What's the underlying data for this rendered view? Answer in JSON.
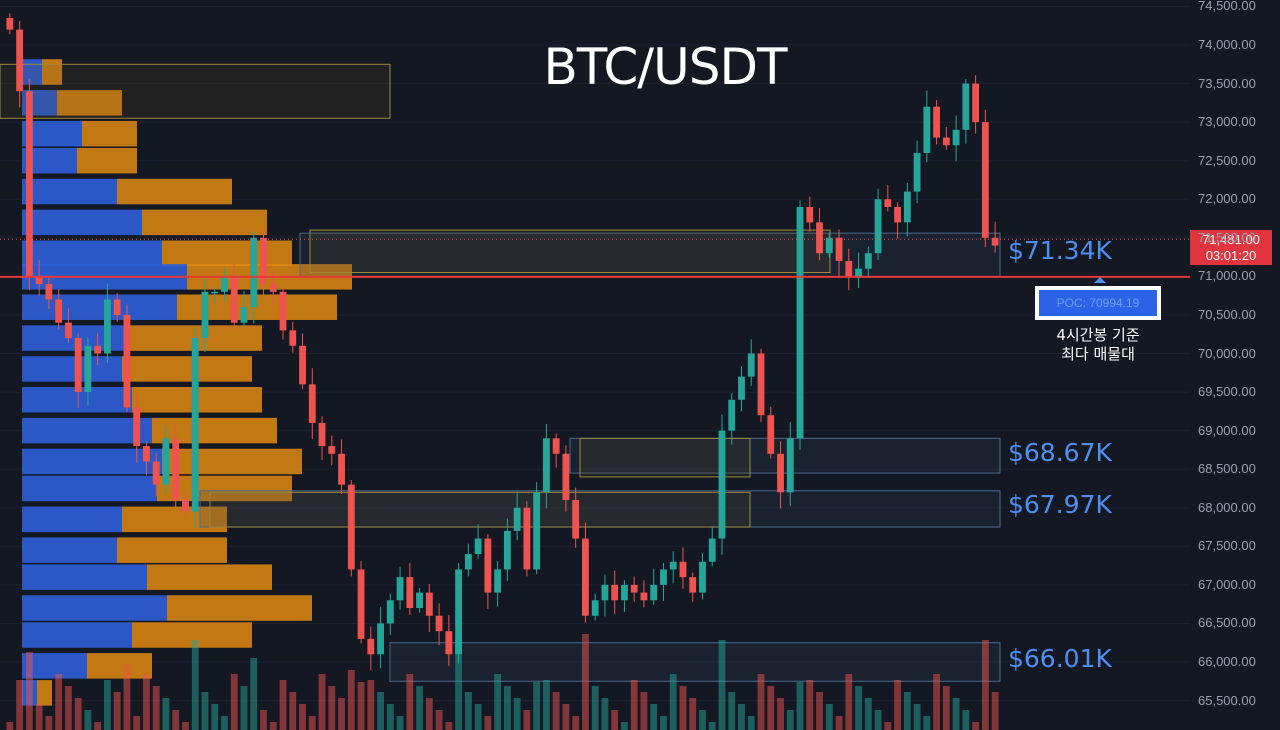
{
  "title": "BTC/USDT",
  "colors": {
    "background": "#141823",
    "bull": "#26a69a",
    "bear": "#ef5350",
    "vp_buy": "#2d5fd8",
    "vp_sell": "#e08a10",
    "poc_line": "#e53935",
    "zone_label": "#4f8ff0"
  },
  "price_tag": {
    "price": "71,481.00",
    "timer": "03:01:20"
  },
  "poc": {
    "label": "POC: 70994.19",
    "note_line1": "4시간봉 기준",
    "note_line2": "최다 매물대"
  },
  "zones": [
    {
      "label": "$71.34K",
      "low": 71000,
      "high": 71560
    },
    {
      "label": "$68.67K",
      "low": 68450,
      "high": 68900
    },
    {
      "label": "$67.97K",
      "low": 67750,
      "high": 68220
    },
    {
      "label": "$66.01K",
      "low": 65750,
      "high": 66250
    }
  ],
  "chart_data": {
    "type": "candlestick",
    "title": "BTC/USDT",
    "timeframe_note": "4시간봉 기준",
    "y_axis": {
      "ticks": [
        "74,500.00",
        "74,000.00",
        "73,500.00",
        "73,000.00",
        "72,500.00",
        "72,000.00",
        "71,500.00",
        "71,000.00",
        "70,500.00",
        "70,000.00",
        "69,500.00",
        "69,000.00",
        "68,500.00",
        "68,000.00",
        "67,500.00",
        "67,000.00",
        "66,500.00",
        "66,000.00",
        "65,500.00"
      ],
      "range": [
        65400,
        74500
      ]
    },
    "last_price": 71481,
    "poc_price": 70994.19,
    "closes": [
      74200,
      73400,
      71000,
      70900,
      70700,
      70400,
      70200,
      69500,
      70100,
      70000,
      70700,
      70500,
      69300,
      68800,
      68600,
      68300,
      68900,
      68100,
      67950,
      70200,
      70800,
      70800,
      71000,
      70400,
      70600,
      71500,
      70900,
      70800,
      70300,
      70100,
      69600,
      69100,
      68800,
      68700,
      68300,
      67200,
      66300,
      66100,
      66500,
      66800,
      67100,
      66700,
      66900,
      66600,
      66400,
      66100,
      67200,
      67400,
      67600,
      66900,
      67200,
      67700,
      68000,
      67200,
      68200,
      68900,
      68700,
      68100,
      67600,
      66600,
      66800,
      67000,
      66800,
      67000,
      66900,
      66800,
      67000,
      67200,
      67300,
      67100,
      66900,
      67300,
      67600,
      69000,
      69400,
      69700,
      70000,
      69200,
      68700,
      68200,
      68900,
      71900,
      71700,
      71300,
      71500,
      71200,
      71000,
      71100,
      71300,
      72000,
      71900,
      71700,
      72100,
      72600,
      73200,
      72800,
      72700,
      72900,
      73500,
      73000,
      71500,
      71400
    ],
    "volume_profile": [
      {
        "price": 73650,
        "buy": 20,
        "sell": 20
      },
      {
        "price": 73250,
        "buy": 35,
        "sell": 65
      },
      {
        "price": 72850,
        "buy": 60,
        "sell": 55
      },
      {
        "price": 72500,
        "buy": 55,
        "sell": 60
      },
      {
        "price": 72100,
        "buy": 95,
        "sell": 115
      },
      {
        "price": 71700,
        "buy": 120,
        "sell": 125
      },
      {
        "price": 71300,
        "buy": 140,
        "sell": 130
      },
      {
        "price": 70994,
        "buy": 165,
        "sell": 165
      },
      {
        "price": 70600,
        "buy": 155,
        "sell": 160
      },
      {
        "price": 70200,
        "buy": 105,
        "sell": 135
      },
      {
        "price": 69800,
        "buy": 100,
        "sell": 130
      },
      {
        "price": 69400,
        "buy": 110,
        "sell": 130
      },
      {
        "price": 69000,
        "buy": 130,
        "sell": 125
      },
      {
        "price": 68600,
        "buy": 140,
        "sell": 140
      },
      {
        "price": 68250,
        "buy": 135,
        "sell": 135
      },
      {
        "price": 67850,
        "buy": 100,
        "sell": 105
      },
      {
        "price": 67450,
        "buy": 95,
        "sell": 110
      },
      {
        "price": 67100,
        "buy": 125,
        "sell": 125
      },
      {
        "price": 66700,
        "buy": 145,
        "sell": 145
      },
      {
        "price": 66350,
        "buy": 110,
        "sell": 120
      },
      {
        "price": 65950,
        "buy": 65,
        "sell": 65
      },
      {
        "price": 65600,
        "buy": 15,
        "sell": 15
      }
    ]
  }
}
